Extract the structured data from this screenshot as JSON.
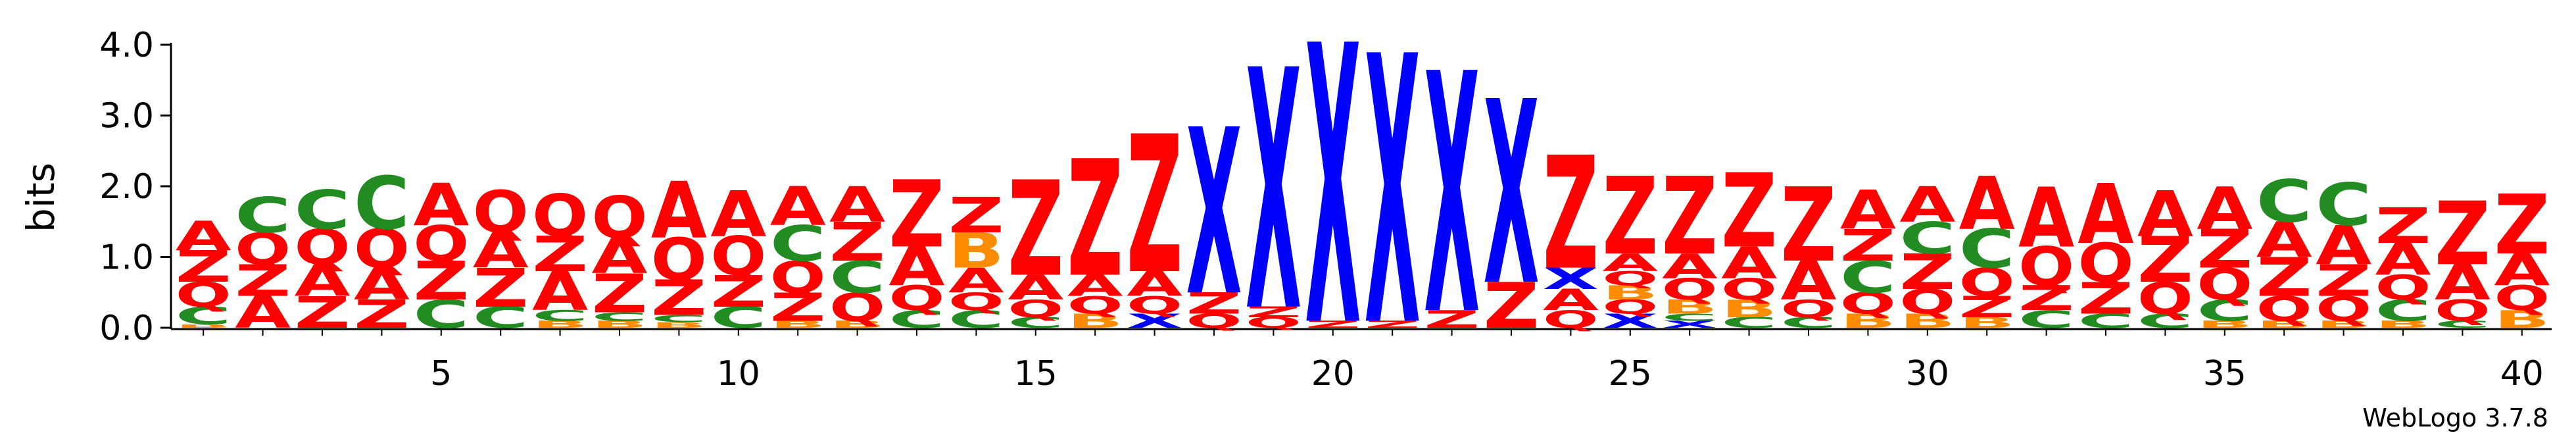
{
  "chart_data": {
    "type": "sequence-logo",
    "title": "",
    "xlabel": "",
    "ylabel": "bits",
    "ylim": [
      0,
      4.0
    ],
    "y_ticks": [
      "0.0",
      "1.0",
      "2.0",
      "3.0",
      "4.0"
    ],
    "x_ticks": [
      "5",
      "10",
      "15",
      "20",
      "25",
      "30",
      "35",
      "40"
    ],
    "x_tick_positions": [
      5,
      10,
      15,
      20,
      25,
      30,
      35,
      40
    ],
    "x_range": [
      1,
      40
    ],
    "credit": "WebLogo 3.7.8",
    "colors": {
      "A": "#ff0000",
      "Z": "#ff0000",
      "Q": "#ff0000",
      "C": "#228b22",
      "B": "#ff8c00",
      "X": "#0000ff"
    },
    "positions": [
      {
        "pos": 1,
        "stack": [
          [
            "B",
            0.05
          ],
          [
            "C",
            0.25
          ],
          [
            "Q",
            0.35
          ],
          [
            "Z",
            0.45
          ],
          [
            "A",
            0.42
          ]
        ]
      },
      {
        "pos": 2,
        "stack": [
          [
            "A",
            0.45
          ],
          [
            "Z",
            0.45
          ],
          [
            "Q",
            0.45
          ],
          [
            "C",
            0.5
          ]
        ]
      },
      {
        "pos": 3,
        "stack": [
          [
            "Z",
            0.45
          ],
          [
            "A",
            0.45
          ],
          [
            "Q",
            0.5
          ],
          [
            "C",
            0.55
          ]
        ]
      },
      {
        "pos": 4,
        "stack": [
          [
            "Z",
            0.4
          ],
          [
            "A",
            0.45
          ],
          [
            "Q",
            0.55
          ],
          [
            "C",
            0.75
          ]
        ]
      },
      {
        "pos": 5,
        "stack": [
          [
            "C",
            0.4
          ],
          [
            "Z",
            0.55
          ],
          [
            "Q",
            0.5
          ],
          [
            "A",
            0.6
          ]
        ]
      },
      {
        "pos": 6,
        "stack": [
          [
            "C",
            0.3
          ],
          [
            "Z",
            0.55
          ],
          [
            "A",
            0.5
          ],
          [
            "Q",
            0.6
          ]
        ]
      },
      {
        "pos": 7,
        "stack": [
          [
            "B",
            0.1
          ],
          [
            "C",
            0.15
          ],
          [
            "A",
            0.55
          ],
          [
            "Z",
            0.5
          ],
          [
            "Q",
            0.6
          ]
        ]
      },
      {
        "pos": 8,
        "stack": [
          [
            "B",
            0.1
          ],
          [
            "C",
            0.12
          ],
          [
            "Z",
            0.55
          ],
          [
            "A",
            0.5
          ],
          [
            "Q",
            0.6
          ]
        ]
      },
      {
        "pos": 9,
        "stack": [
          [
            "B",
            0.08
          ],
          [
            "C",
            0.1
          ],
          [
            "Z",
            0.5
          ],
          [
            "Q",
            0.6
          ],
          [
            "A",
            0.8
          ]
        ]
      },
      {
        "pos": 10,
        "stack": [
          [
            "C",
            0.3
          ],
          [
            "Z",
            0.45
          ],
          [
            "Q",
            0.55
          ],
          [
            "A",
            0.65
          ]
        ]
      },
      {
        "pos": 11,
        "stack": [
          [
            "B",
            0.1
          ],
          [
            "Z",
            0.4
          ],
          [
            "Q",
            0.45
          ],
          [
            "C",
            0.5
          ],
          [
            "A",
            0.55
          ]
        ]
      },
      {
        "pos": 12,
        "stack": [
          [
            "B",
            0.1
          ],
          [
            "Q",
            0.4
          ],
          [
            "C",
            0.45
          ],
          [
            "Z",
            0.55
          ],
          [
            "A",
            0.5
          ]
        ]
      },
      {
        "pos": 13,
        "stack": [
          [
            "C",
            0.25
          ],
          [
            "Q",
            0.35
          ],
          [
            "A",
            0.55
          ],
          [
            "Z",
            0.95
          ]
        ]
      },
      {
        "pos": 14,
        "stack": [
          [
            "C",
            0.25
          ],
          [
            "Q",
            0.25
          ],
          [
            "A",
            0.35
          ],
          [
            "B",
            0.5
          ],
          [
            "Z",
            0.5
          ]
        ]
      },
      {
        "pos": 15,
        "stack": [
          [
            "C",
            0.15
          ],
          [
            "Q",
            0.25
          ],
          [
            "A",
            0.35
          ],
          [
            "Z",
            1.35
          ]
        ]
      },
      {
        "pos": 16,
        "stack": [
          [
            "B",
            0.2
          ],
          [
            "Q",
            0.25
          ],
          [
            "A",
            0.3
          ],
          [
            "Z",
            1.65
          ]
        ]
      },
      {
        "pos": 17,
        "stack": [
          [
            "X",
            0.2
          ],
          [
            "Q",
            0.25
          ],
          [
            "A",
            0.35
          ],
          [
            "Z",
            1.95
          ]
        ]
      },
      {
        "pos": 18,
        "stack": [
          [
            "Q",
            0.2
          ],
          [
            "Z",
            0.3
          ],
          [
            "X",
            2.35
          ]
        ]
      },
      {
        "pos": 19,
        "stack": [
          [
            "Q",
            0.15
          ],
          [
            "Z",
            0.15
          ],
          [
            "X",
            3.4
          ]
        ]
      },
      {
        "pos": 20,
        "stack": [
          [
            "Z",
            0.1
          ],
          [
            "X",
            3.95
          ]
        ]
      },
      {
        "pos": 21,
        "stack": [
          [
            "Z",
            0.1
          ],
          [
            "X",
            3.8
          ]
        ]
      },
      {
        "pos": 22,
        "stack": [
          [
            "Z",
            0.25
          ],
          [
            "X",
            3.4
          ]
        ]
      },
      {
        "pos": 23,
        "stack": [
          [
            "Z",
            0.65
          ],
          [
            "X",
            2.6
          ]
        ]
      },
      {
        "pos": 24,
        "stack": [
          [
            "Q",
            0.25
          ],
          [
            "A",
            0.3
          ],
          [
            "X",
            0.3
          ],
          [
            "Z",
            1.6
          ]
        ]
      },
      {
        "pos": 25,
        "stack": [
          [
            "X",
            0.2
          ],
          [
            "Q",
            0.2
          ],
          [
            "B",
            0.2
          ],
          [
            "Q",
            0.2
          ],
          [
            "A",
            0.25
          ],
          [
            "Z",
            1.1
          ]
        ]
      },
      {
        "pos": 26,
        "stack": [
          [
            "X",
            0.1
          ],
          [
            "C",
            0.1
          ],
          [
            "B",
            0.2
          ],
          [
            "Q",
            0.3
          ],
          [
            "A",
            0.35
          ],
          [
            "Z",
            1.1
          ]
        ]
      },
      {
        "pos": 27,
        "stack": [
          [
            "C",
            0.15
          ],
          [
            "B",
            0.25
          ],
          [
            "Q",
            0.3
          ],
          [
            "A",
            0.45
          ],
          [
            "Z",
            1.05
          ]
        ]
      },
      {
        "pos": 28,
        "stack": [
          [
            "C",
            0.15
          ],
          [
            "Q",
            0.25
          ],
          [
            "A",
            0.55
          ],
          [
            "Z",
            1.05
          ]
        ]
      },
      {
        "pos": 29,
        "stack": [
          [
            "B",
            0.2
          ],
          [
            "Q",
            0.3
          ],
          [
            "C",
            0.45
          ],
          [
            "Z",
            0.45
          ],
          [
            "A",
            0.55
          ]
        ]
      },
      {
        "pos": 30,
        "stack": [
          [
            "B",
            0.2
          ],
          [
            "Q",
            0.35
          ],
          [
            "Z",
            0.5
          ],
          [
            "C",
            0.45
          ],
          [
            "A",
            0.5
          ]
        ]
      },
      {
        "pos": 31,
        "stack": [
          [
            "B",
            0.15
          ],
          [
            "Z",
            0.3
          ],
          [
            "Q",
            0.4
          ],
          [
            "C",
            0.55
          ],
          [
            "A",
            0.75
          ]
        ]
      },
      {
        "pos": 32,
        "stack": [
          [
            "C",
            0.25
          ],
          [
            "Z",
            0.35
          ],
          [
            "Q",
            0.55
          ],
          [
            "A",
            0.85
          ]
        ]
      },
      {
        "pos": 33,
        "stack": [
          [
            "C",
            0.2
          ],
          [
            "Z",
            0.45
          ],
          [
            "Q",
            0.55
          ],
          [
            "A",
            0.85
          ]
        ]
      },
      {
        "pos": 34,
        "stack": [
          [
            "C",
            0.2
          ],
          [
            "Q",
            0.45
          ],
          [
            "Z",
            0.65
          ],
          [
            "A",
            0.65
          ]
        ]
      },
      {
        "pos": 35,
        "stack": [
          [
            "B",
            0.1
          ],
          [
            "C",
            0.3
          ],
          [
            "Q",
            0.45
          ],
          [
            "Z",
            0.55
          ],
          [
            "A",
            0.6
          ]
        ]
      },
      {
        "pos": 36,
        "stack": [
          [
            "B",
            0.1
          ],
          [
            "Q",
            0.35
          ],
          [
            "Z",
            0.55
          ],
          [
            "A",
            0.5
          ],
          [
            "C",
            0.6
          ]
        ]
      },
      {
        "pos": 37,
        "stack": [
          [
            "B",
            0.1
          ],
          [
            "Q",
            0.35
          ],
          [
            "Z",
            0.45
          ],
          [
            "A",
            0.55
          ],
          [
            "C",
            0.6
          ]
        ]
      },
      {
        "pos": 38,
        "stack": [
          [
            "B",
            0.1
          ],
          [
            "C",
            0.3
          ],
          [
            "Q",
            0.35
          ],
          [
            "A",
            0.45
          ],
          [
            "Z",
            0.5
          ]
        ]
      },
      {
        "pos": 39,
        "stack": [
          [
            "C",
            0.1
          ],
          [
            "Q",
            0.3
          ],
          [
            "A",
            0.5
          ],
          [
            "Z",
            0.9
          ]
        ]
      },
      {
        "pos": 40,
        "stack": [
          [
            "B",
            0.25
          ],
          [
            "Q",
            0.35
          ],
          [
            "A",
            0.45
          ],
          [
            "Z",
            0.85
          ]
        ]
      }
    ]
  }
}
